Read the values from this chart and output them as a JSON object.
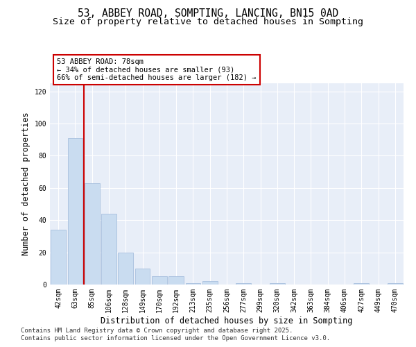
{
  "title1": "53, ABBEY ROAD, SOMPTING, LANCING, BN15 0AD",
  "title2": "Size of property relative to detached houses in Sompting",
  "xlabel": "Distribution of detached houses by size in Sompting",
  "ylabel": "Number of detached properties",
  "bar_color": "#c9dcf0",
  "bar_edge_color": "#a8c0de",
  "background_color": "#e8eef8",
  "categories": [
    "42sqm",
    "63sqm",
    "85sqm",
    "106sqm",
    "128sqm",
    "149sqm",
    "170sqm",
    "192sqm",
    "213sqm",
    "235sqm",
    "256sqm",
    "277sqm",
    "299sqm",
    "320sqm",
    "342sqm",
    "363sqm",
    "384sqm",
    "406sqm",
    "427sqm",
    "449sqm",
    "470sqm"
  ],
  "values": [
    34,
    91,
    63,
    44,
    20,
    10,
    5,
    5,
    1,
    2,
    0,
    1,
    0,
    1,
    0,
    0,
    0,
    0,
    1,
    0,
    1
  ],
  "red_line_x": 1.5,
  "annotation_text": "53 ABBEY ROAD: 78sqm\n← 34% of detached houses are smaller (93)\n66% of semi-detached houses are larger (182) →",
  "annotation_box_color": "#ffffff",
  "annotation_box_edge": "#cc0000",
  "red_line_color": "#cc0000",
  "ylim": [
    0,
    125
  ],
  "yticks": [
    0,
    20,
    40,
    60,
    80,
    100,
    120
  ],
  "footer1": "Contains HM Land Registry data © Crown copyright and database right 2025.",
  "footer2": "Contains public sector information licensed under the Open Government Licence v3.0.",
  "title_fontsize": 10.5,
  "subtitle_fontsize": 9.5,
  "axis_label_fontsize": 8.5,
  "tick_fontsize": 7,
  "annotation_fontsize": 7.5,
  "footer_fontsize": 6.5
}
